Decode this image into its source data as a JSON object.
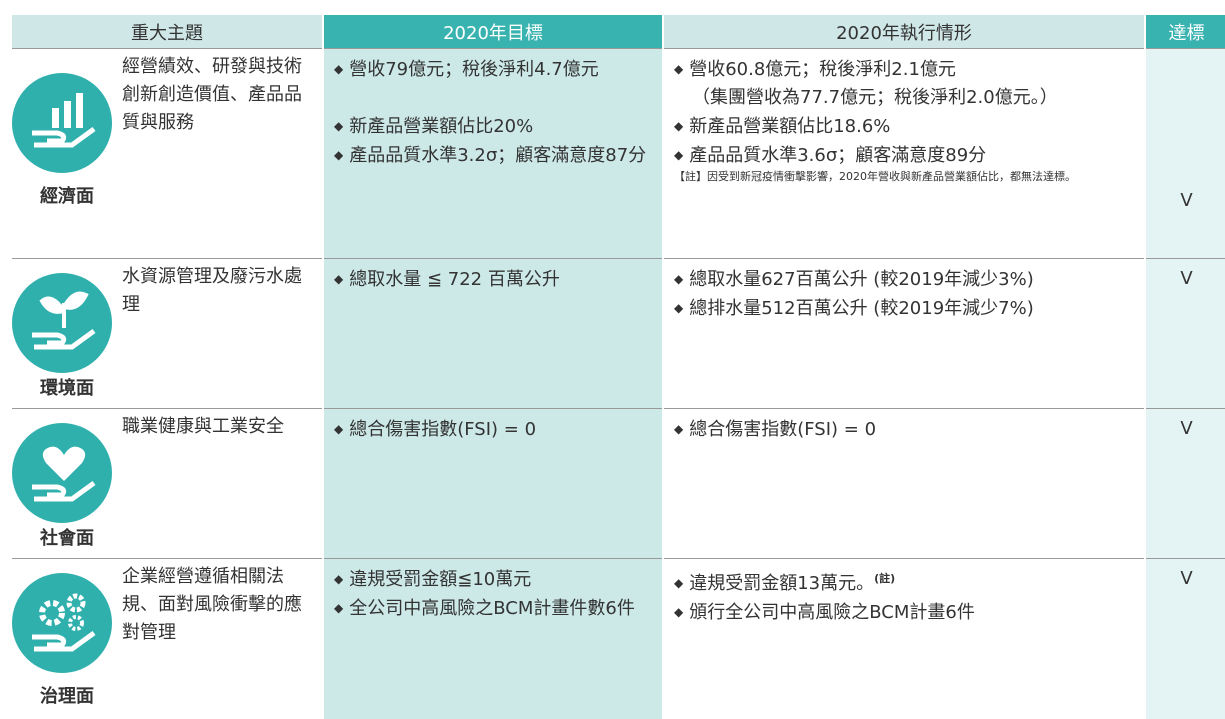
{
  "table": {
    "header": [
      "重大主題",
      "2020年目標",
      "2020年執行情形",
      "達標"
    ],
    "rows": [
      {
        "category": "經濟面",
        "topic": "經營績效、研發與技術創新創造價值、產品品質與服務",
        "targets": [
          "營收79億元；稅後淨利4.7億元",
          "新產品營業額佔比20%",
          "產品品質水準3.2σ；顧客滿意度87分"
        ],
        "results": [
          "營收60.8億元；稅後淨利2.1億元",
          "新產品營業額佔比18.6%",
          "產品品質水準3.6σ；顧客滿意度89分"
        ],
        "results_detail": "（集團營收為77.7億元；稅後淨利2.0億元。）",
        "note": "【註】因受到新冠疫情衝擊影響，2020年營收與新產品營業額佔比，都無法達標。",
        "achieved": "V"
      },
      {
        "category": "環境面",
        "topic": "水資源管理及廢污水處理",
        "targets": [
          "總取水量 ≦ 722 百萬公升"
        ],
        "results": [
          "總取水量627百萬公升 (較2019年減少3%)",
          "總排水量512百萬公升 (較2019年減少7%)"
        ],
        "achieved": "V"
      },
      {
        "category": "社會面",
        "topic": "職業健康與工業安全",
        "targets": [
          "總合傷害指數(FSI) = 0"
        ],
        "results": [
          "總合傷害指數(FSI) = 0"
        ],
        "achieved": "V"
      },
      {
        "category": "治理面",
        "topic": "企業經營遵循相關法規、面對風險衝擊的應對管理",
        "targets": [
          "違規受罰金額≦10萬元",
          "全公司中高風險之BCM計畫件數6件"
        ],
        "results": [
          "違規受罰金額13萬元。",
          "頒行全公司中高風險之BCM計畫6件"
        ],
        "results_superscript": "(註)",
        "achieved": "V"
      }
    ]
  }
}
